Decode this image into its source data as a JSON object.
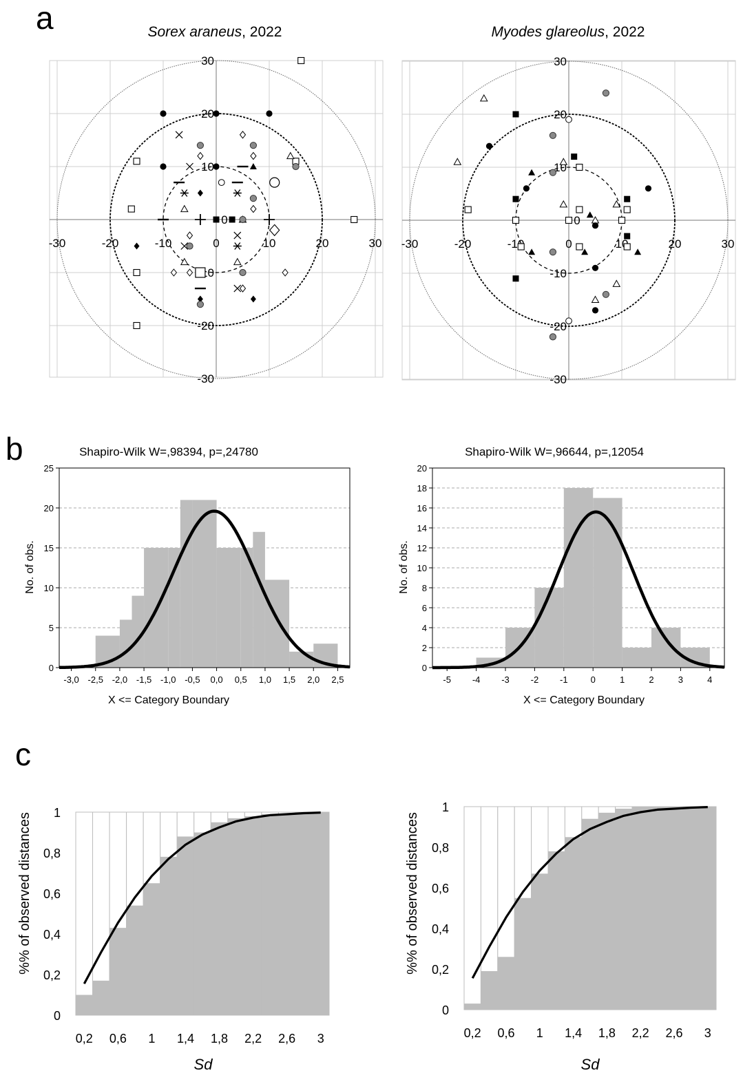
{
  "figure": {
    "panel_labels": [
      "a",
      "b",
      "c"
    ]
  },
  "chart_data": [
    {
      "id": "a1",
      "type": "scatter",
      "title_italic": "Sorex araneus",
      "title_rest": ", 2022",
      "xlim": [
        -30,
        30
      ],
      "ylim": [
        -30,
        30
      ],
      "xticks": [
        -30,
        -20,
        -10,
        0,
        10,
        20,
        30
      ],
      "yticks": [
        30,
        20,
        10,
        0,
        -10,
        -20,
        -30
      ],
      "circles": [
        10,
        20,
        30
      ],
      "grid": true,
      "points": [
        {
          "x": 16,
          "y": 30,
          "m": "sq"
        },
        {
          "x": -10,
          "y": 20,
          "m": "dot"
        },
        {
          "x": 0,
          "y": 20,
          "m": "dot"
        },
        {
          "x": 10,
          "y": 20,
          "m": "dot"
        },
        {
          "x": -7,
          "y": 16,
          "m": "x"
        },
        {
          "x": 5,
          "y": 16,
          "m": "dia"
        },
        {
          "x": -3,
          "y": 14,
          "m": "gdot"
        },
        {
          "x": 7,
          "y": 14,
          "m": "gdot"
        },
        {
          "x": -3,
          "y": 12,
          "m": "dia"
        },
        {
          "x": 7,
          "y": 12,
          "m": "dia"
        },
        {
          "x": -15,
          "y": 11,
          "m": "sq"
        },
        {
          "x": 15,
          "y": 11,
          "m": "sq"
        },
        {
          "x": 14,
          "y": 12,
          "m": "tri"
        },
        {
          "x": -10,
          "y": 10,
          "m": "dot"
        },
        {
          "x": 0,
          "y": 10,
          "m": "dot"
        },
        {
          "x": 15,
          "y": 10,
          "m": "gdot"
        },
        {
          "x": -5,
          "y": 10,
          "m": "x"
        },
        {
          "x": 5,
          "y": 10,
          "m": "dash"
        },
        {
          "x": 7,
          "y": 10,
          "m": "ftri"
        },
        {
          "x": 1,
          "y": 7,
          "m": "circ"
        },
        {
          "x": 4,
          "y": 7,
          "m": "dash"
        },
        {
          "x": 11,
          "y": 7,
          "m": "bigcirc"
        },
        {
          "x": -7,
          "y": 7,
          "m": "dash"
        },
        {
          "x": -6,
          "y": 5,
          "m": "star"
        },
        {
          "x": -3,
          "y": 5,
          "m": "fdia"
        },
        {
          "x": 4,
          "y": 5,
          "m": "star"
        },
        {
          "x": 7,
          "y": 4,
          "m": "gdot"
        },
        {
          "x": 7,
          "y": 2,
          "m": "dia"
        },
        {
          "x": -16,
          "y": 2,
          "m": "sq"
        },
        {
          "x": -6,
          "y": 2,
          "m": "tri"
        },
        {
          "x": -3,
          "y": 0,
          "m": "plus"
        },
        {
          "x": 0,
          "y": 0,
          "m": "fsq"
        },
        {
          "x": 3,
          "y": 0,
          "m": "fsq"
        },
        {
          "x": 5,
          "y": 0,
          "m": "tri"
        },
        {
          "x": 5,
          "y": 0,
          "m": "gdot"
        },
        {
          "x": 10,
          "y": 0,
          "m": "plus"
        },
        {
          "x": 26,
          "y": 0,
          "m": "sq"
        },
        {
          "x": -10,
          "y": 0,
          "m": "dash"
        },
        {
          "x": 11,
          "y": -2,
          "m": "bigdia"
        },
        {
          "x": -5,
          "y": -3,
          "m": "dia"
        },
        {
          "x": 4,
          "y": -3,
          "m": "x"
        },
        {
          "x": -15,
          "y": -5,
          "m": "fdia"
        },
        {
          "x": -6,
          "y": -5,
          "m": "x"
        },
        {
          "x": -5,
          "y": -5,
          "m": "gdot"
        },
        {
          "x": 4,
          "y": -5,
          "m": "star"
        },
        {
          "x": -6,
          "y": -8,
          "m": "tri"
        },
        {
          "x": 4,
          "y": -8,
          "m": "tri"
        },
        {
          "x": -8,
          "y": -10,
          "m": "dia"
        },
        {
          "x": -5,
          "y": -10,
          "m": "dia"
        },
        {
          "x": -3,
          "y": -10,
          "m": "bigsq"
        },
        {
          "x": 5,
          "y": -10,
          "m": "gdot"
        },
        {
          "x": 13,
          "y": -10,
          "m": "dia"
        },
        {
          "x": -15,
          "y": -10,
          "m": "sq"
        },
        {
          "x": -3,
          "y": -13,
          "m": "dash"
        },
        {
          "x": 4,
          "y": -13,
          "m": "x"
        },
        {
          "x": 5,
          "y": -13,
          "m": "dia"
        },
        {
          "x": -3,
          "y": -15,
          "m": "fdia"
        },
        {
          "x": 7,
          "y": -15,
          "m": "fdia"
        },
        {
          "x": -3,
          "y": -16,
          "m": "gdot"
        },
        {
          "x": -15,
          "y": -20,
          "m": "sq"
        }
      ]
    },
    {
      "id": "a2",
      "type": "scatter",
      "title_italic": "Myodes glareolus",
      "title_rest": ", 2022",
      "xlim": [
        -30,
        30
      ],
      "ylim": [
        -30,
        30
      ],
      "xticks": [
        -30,
        -20,
        -10,
        0,
        10,
        20,
        30
      ],
      "yticks": [
        30,
        20,
        10,
        0,
        -10,
        -20,
        -30
      ],
      "circles": [
        10,
        20,
        30
      ],
      "grid": true,
      "points": [
        {
          "x": -16,
          "y": 23,
          "m": "tri"
        },
        {
          "x": 7,
          "y": 24,
          "m": "gdot"
        },
        {
          "x": -10,
          "y": 20,
          "m": "fsq"
        },
        {
          "x": 0,
          "y": 19,
          "m": "circ"
        },
        {
          "x": -3,
          "y": 16,
          "m": "gdot"
        },
        {
          "x": -15,
          "y": 14,
          "m": "dot"
        },
        {
          "x": -21,
          "y": 11,
          "m": "tri"
        },
        {
          "x": 1,
          "y": 12,
          "m": "fsq"
        },
        {
          "x": -1,
          "y": 11,
          "m": "tri"
        },
        {
          "x": 2,
          "y": 10,
          "m": "sq"
        },
        {
          "x": -3,
          "y": 9,
          "m": "gdot"
        },
        {
          "x": -7,
          "y": 9,
          "m": "ftri"
        },
        {
          "x": -8,
          "y": 6,
          "m": "dot"
        },
        {
          "x": 15,
          "y": 6,
          "m": "dot"
        },
        {
          "x": -10,
          "y": 4,
          "m": "fsq"
        },
        {
          "x": 11,
          "y": 4,
          "m": "fsq"
        },
        {
          "x": -1,
          "y": 3,
          "m": "tri"
        },
        {
          "x": 9,
          "y": 3,
          "m": "tri"
        },
        {
          "x": -19,
          "y": 2,
          "m": "sq"
        },
        {
          "x": 2,
          "y": 2,
          "m": "sq"
        },
        {
          "x": 11,
          "y": 2,
          "m": "sq"
        },
        {
          "x": 4,
          "y": 1,
          "m": "ftri"
        },
        {
          "x": -10,
          "y": 0,
          "m": "sq"
        },
        {
          "x": 0,
          "y": 0,
          "m": "sq"
        },
        {
          "x": 10,
          "y": 0,
          "m": "sq"
        },
        {
          "x": 5,
          "y": 0,
          "m": "tri"
        },
        {
          "x": 5,
          "y": -1,
          "m": "dot"
        },
        {
          "x": 11,
          "y": -3,
          "m": "fsq"
        },
        {
          "x": -9,
          "y": -5,
          "m": "sq"
        },
        {
          "x": -7,
          "y": -6,
          "m": "ftri"
        },
        {
          "x": -3,
          "y": -6,
          "m": "gdot"
        },
        {
          "x": 2,
          "y": -5,
          "m": "sq"
        },
        {
          "x": 3,
          "y": -6,
          "m": "ftri"
        },
        {
          "x": 11,
          "y": -5,
          "m": "sq"
        },
        {
          "x": 13,
          "y": -6,
          "m": "ftri"
        },
        {
          "x": 5,
          "y": -9,
          "m": "dot"
        },
        {
          "x": -10,
          "y": -11,
          "m": "fsq"
        },
        {
          "x": 9,
          "y": -12,
          "m": "tri"
        },
        {
          "x": 7,
          "y": -14,
          "m": "gdot"
        },
        {
          "x": 5,
          "y": -15,
          "m": "tri"
        },
        {
          "x": 5,
          "y": -17,
          "m": "dot"
        },
        {
          "x": 0,
          "y": -19,
          "m": "circ"
        },
        {
          "x": -3,
          "y": -22,
          "m": "gdot"
        }
      ]
    },
    {
      "id": "b1",
      "type": "bar",
      "title": "Shapiro-Wilk W=,98394, p=,24780",
      "xlabel": "X <= Category Boundary",
      "ylabel": "No. of obs.",
      "xlim": [
        -3.25,
        2.75
      ],
      "ylim": [
        0,
        25
      ],
      "xticks": [
        -3.0,
        -2.5,
        -2.0,
        -1.5,
        -1.0,
        -0.5,
        0.0,
        0.5,
        1.0,
        1.5,
        2.0,
        2.5
      ],
      "xtick_labels": [
        "-3,0",
        "-2,5",
        "-2,0",
        "-1,5",
        "-1,0",
        "-0,5",
        "0,0",
        "0,5",
        "1,0",
        "1,5",
        "2,0",
        "2,5"
      ],
      "yticks": [
        0,
        5,
        10,
        15,
        20,
        25
      ],
      "bin_edges": [
        -2.5,
        -2.0,
        -1.75,
        -1.5,
        -1.0,
        -0.75,
        -0.5,
        0.0,
        0.5,
        0.75,
        1.0,
        1.5,
        2.0,
        2.5
      ],
      "values": [
        4,
        6,
        9,
        15,
        15,
        21,
        21,
        15,
        15,
        17,
        11,
        2,
        3
      ],
      "normal_fit": {
        "mean": -0.05,
        "sd": 0.85,
        "peak": 19.6
      },
      "grid": "horizontal dashed"
    },
    {
      "id": "b2",
      "type": "bar",
      "title": "Shapiro-Wilk W=,96644, p=,12054",
      "xlabel": "X <= Category Boundary",
      "ylabel": "No. of obs.",
      "xlim": [
        -5.5,
        4.5
      ],
      "ylim": [
        0,
        20
      ],
      "xticks": [
        -5,
        -4,
        -3,
        -2,
        -1,
        0,
        1,
        2,
        3,
        4
      ],
      "xtick_labels": [
        "-5",
        "-4",
        "-3",
        "-2",
        "-1",
        "0",
        "1",
        "2",
        "3",
        "4"
      ],
      "yticks": [
        0,
        2,
        4,
        6,
        8,
        10,
        12,
        14,
        16,
        18,
        20
      ],
      "bin_edges": [
        -4,
        -3,
        -2,
        -1,
        0,
        1,
        2,
        3,
        4
      ],
      "values": [
        1,
        4,
        8,
        18,
        17,
        2,
        4,
        2
      ],
      "normal_fit": {
        "mean": 0.1,
        "sd": 1.3,
        "peak": 15.6
      },
      "grid": "horizontal dashed"
    },
    {
      "id": "c1",
      "type": "bar",
      "xlabel": "Sd",
      "ylabel": "%% of observed distances",
      "xlim": [
        0.1,
        3.1
      ],
      "ylim": [
        0,
        1
      ],
      "xticks": [
        0.2,
        0.6,
        1,
        1.4,
        1.8,
        2.2,
        2.6,
        3
      ],
      "xtick_labels": [
        "0,2",
        "0,6",
        "1",
        "1,4",
        "1,8",
        "2,2",
        "2,6",
        "3"
      ],
      "yticks": [
        0,
        0.2,
        0.4,
        0.6,
        0.8,
        1
      ],
      "ytick_labels": [
        "0",
        "0,2",
        "0,4",
        "0,6",
        "0,8",
        "1"
      ],
      "bin_edges": [
        0.1,
        0.3,
        0.5,
        0.7,
        0.9,
        1.1,
        1.3,
        1.5,
        1.7,
        1.9,
        2.1,
        2.3,
        2.5,
        2.7,
        2.9,
        3.1
      ],
      "values": [
        0.1,
        0.17,
        0.43,
        0.54,
        0.65,
        0.78,
        0.88,
        0.9,
        0.95,
        0.97,
        0.98,
        0.99,
        0.99,
        1.0,
        1.0
      ],
      "curve_x": [
        0.2,
        0.4,
        0.6,
        0.8,
        1.0,
        1.2,
        1.4,
        1.6,
        1.8,
        2.0,
        2.2,
        2.4,
        2.6,
        2.8,
        3.0
      ],
      "curve_y": [
        0.155,
        0.31,
        0.455,
        0.58,
        0.685,
        0.77,
        0.84,
        0.89,
        0.925,
        0.955,
        0.973,
        0.985,
        0.99,
        0.995,
        0.998
      ]
    },
    {
      "id": "c2",
      "type": "bar",
      "xlabel": "Sd",
      "ylabel": "%% of observed distances",
      "xlim": [
        0.1,
        3.1
      ],
      "ylim": [
        0,
        1
      ],
      "xticks": [
        0.2,
        0.6,
        1,
        1.4,
        1.8,
        2.2,
        2.6,
        3
      ],
      "xtick_labels": [
        "0,2",
        "0,6",
        "1",
        "1,4",
        "1,8",
        "2,2",
        "2,6",
        "3"
      ],
      "yticks": [
        0,
        0.2,
        0.4,
        0.6,
        0.8,
        1
      ],
      "ytick_labels": [
        "0",
        "0,2",
        "0,4",
        "0,6",
        "0,8",
        "1"
      ],
      "bin_edges": [
        0.1,
        0.3,
        0.5,
        0.7,
        0.9,
        1.1,
        1.3,
        1.5,
        1.7,
        1.9,
        2.1,
        2.3,
        2.5,
        2.7,
        2.9,
        3.1
      ],
      "values": [
        0.03,
        0.19,
        0.26,
        0.55,
        0.67,
        0.78,
        0.85,
        0.94,
        0.97,
        0.99,
        1.0,
        1.0,
        1.0,
        1.0,
        1.0
      ],
      "curve_x": [
        0.2,
        0.4,
        0.6,
        0.8,
        1.0,
        1.2,
        1.4,
        1.6,
        1.8,
        2.0,
        2.2,
        2.4,
        2.6,
        2.8,
        3.0
      ],
      "curve_y": [
        0.155,
        0.31,
        0.455,
        0.58,
        0.685,
        0.77,
        0.84,
        0.89,
        0.925,
        0.955,
        0.973,
        0.985,
        0.99,
        0.995,
        0.998
      ]
    }
  ]
}
